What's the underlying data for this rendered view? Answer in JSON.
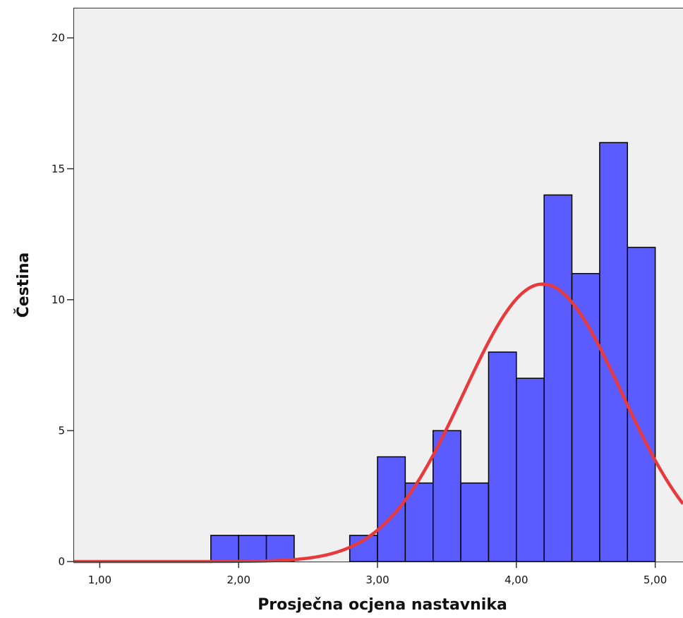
{
  "chart_data": {
    "type": "bar",
    "title": "",
    "xlabel": "Prosječna ocjena nastavnika",
    "ylabel": "Čestina",
    "xlim": [
      0.81,
      5.2
    ],
    "ylim": [
      0,
      21.15
    ],
    "x_ticks": [
      {
        "value": 1,
        "label": "1,00"
      },
      {
        "value": 2,
        "label": "2,00"
      },
      {
        "value": 3,
        "label": "3,00"
      },
      {
        "value": 4,
        "label": "4,00"
      },
      {
        "value": 5,
        "label": "5,00"
      }
    ],
    "y_ticks": [
      {
        "value": 0,
        "label": "0"
      },
      {
        "value": 5,
        "label": "5"
      },
      {
        "value": 10,
        "label": "10"
      },
      {
        "value": 15,
        "label": "15"
      },
      {
        "value": 20,
        "label": "20"
      }
    ],
    "bins": [
      {
        "start": 1.8,
        "end": 2.0,
        "count": 1
      },
      {
        "start": 2.0,
        "end": 2.2,
        "count": 1
      },
      {
        "start": 2.2,
        "end": 2.4,
        "count": 1
      },
      {
        "start": 2.8,
        "end": 3.0,
        "count": 1
      },
      {
        "start": 3.0,
        "end": 3.2,
        "count": 4
      },
      {
        "start": 3.2,
        "end": 3.4,
        "count": 3
      },
      {
        "start": 3.4,
        "end": 3.6,
        "count": 5
      },
      {
        "start": 3.6,
        "end": 3.8,
        "count": 3
      },
      {
        "start": 3.8,
        "end": 4.0,
        "count": 8
      },
      {
        "start": 4.0,
        "end": 4.2,
        "count": 7
      },
      {
        "start": 4.2,
        "end": 4.4,
        "count": 14
      },
      {
        "start": 4.4,
        "end": 4.6,
        "count": 11
      },
      {
        "start": 4.6,
        "end": 4.8,
        "count": 16
      },
      {
        "start": 4.8,
        "end": 5.0,
        "count": 12
      }
    ],
    "normal_curve": {
      "mean": 4.19,
      "sd": 0.57,
      "peak": 10.6
    },
    "grid": false,
    "legend": "none",
    "colors": {
      "bar_fill": "#5a5cff",
      "bar_edge": "#000000",
      "curve": "#e8393c",
      "plot_background": "#f0f0f0"
    }
  }
}
